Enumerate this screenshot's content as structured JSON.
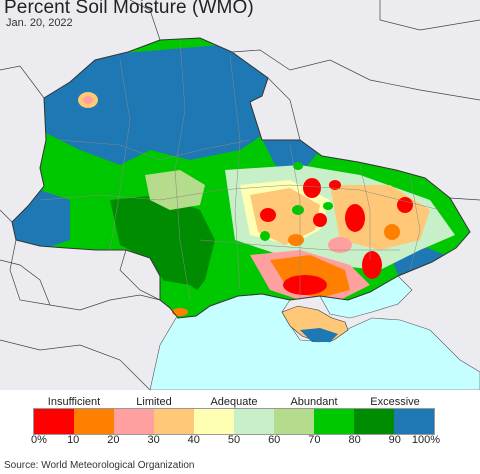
{
  "header": {
    "title": "Percent Soil Moisture (WMO)",
    "date": "Jan. 20, 2022"
  },
  "legend": {
    "categories": [
      {
        "label": "Insufficient",
        "at_tick": 1
      },
      {
        "label": "Limited",
        "at_tick": 3
      },
      {
        "label": "Adequate",
        "at_tick": 5
      },
      {
        "label": "Abundant",
        "at_tick": 7
      },
      {
        "label": "Excessive",
        "at_tick": 9
      }
    ],
    "swatches": [
      "#ff0000",
      "#ff8000",
      "#ffa0a0",
      "#ffc878",
      "#ffffb4",
      "#c8f0c8",
      "#b4dc8c",
      "#00c800",
      "#008c00",
      "#1e78b4"
    ],
    "ticks": [
      "0%",
      "10",
      "20",
      "30",
      "40",
      "50",
      "60",
      "70",
      "80",
      "90",
      "100%"
    ]
  },
  "map": {
    "background_color": "#ecebf0",
    "water_color": "#c6ffff",
    "border_color": "#333333"
  },
  "footer": {
    "source": "Source: World Meteorological Organization"
  }
}
